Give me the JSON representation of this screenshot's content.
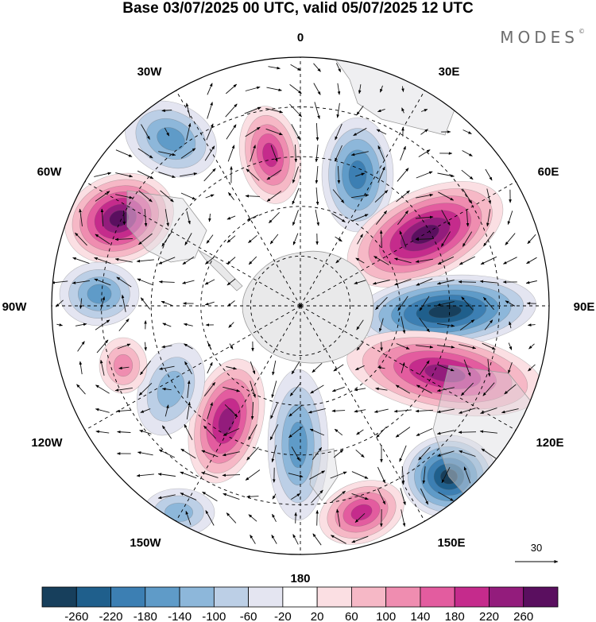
{
  "title": "Base 03/07/2025 00 UTC, valid 05/07/2025 12 UTC",
  "brand": "MODES",
  "brand_mark": "©",
  "longitude_labels": {
    "n": "0",
    "ne": "30E",
    "ene": "60E",
    "e": "90E",
    "ese": "120E",
    "se": "150E",
    "s": "180",
    "sw": "150W",
    "wsw": "120W",
    "w": "90W",
    "wnw": "60W",
    "nw": "30W"
  },
  "vector_reference": "30",
  "colorbar": {
    "ticks": [
      "-260",
      "-220",
      "-180",
      "-140",
      "-100",
      "-60",
      "-20",
      "20",
      "60",
      "100",
      "140",
      "180",
      "220",
      "260"
    ],
    "colors": [
      "#173f5c",
      "#1f5f8c",
      "#3c7fb3",
      "#5f9bc8",
      "#8db7da",
      "#bccfe6",
      "#e4e5f1",
      "#ffffff",
      "#fbdfe3",
      "#f6b8c6",
      "#ef8db0",
      "#e35c9f",
      "#c52b8c",
      "#931c7c",
      "#5a0f5f"
    ]
  },
  "map_features": {
    "anomaly_centers": [
      {
        "name": "positive-60w",
        "sign": "positive",
        "value": 260
      },
      {
        "name": "positive-15w",
        "sign": "positive",
        "value": 180
      },
      {
        "name": "negative-30w",
        "sign": "negative",
        "value": -140
      },
      {
        "name": "negative-30e",
        "sign": "negative",
        "value": -180
      },
      {
        "name": "positive-55e",
        "sign": "positive",
        "value": 260
      },
      {
        "name": "negative-90e",
        "sign": "negative",
        "value": -260
      },
      {
        "name": "positive-110e",
        "sign": "positive",
        "value": 220
      },
      {
        "name": "negative-140e",
        "sign": "negative",
        "value": -260
      },
      {
        "name": "positive-160e",
        "sign": "positive",
        "value": 180
      },
      {
        "name": "negative-175w",
        "sign": "negative",
        "value": -140
      },
      {
        "name": "positive-140w",
        "sign": "positive",
        "value": 220
      },
      {
        "name": "negative-120w",
        "sign": "negative",
        "value": -100
      },
      {
        "name": "negative-90w",
        "sign": "negative",
        "value": -140
      },
      {
        "name": "positive-110w",
        "sign": "positive",
        "value": 100
      },
      {
        "name": "negative-150w",
        "sign": "negative",
        "value": -100
      }
    ]
  }
}
